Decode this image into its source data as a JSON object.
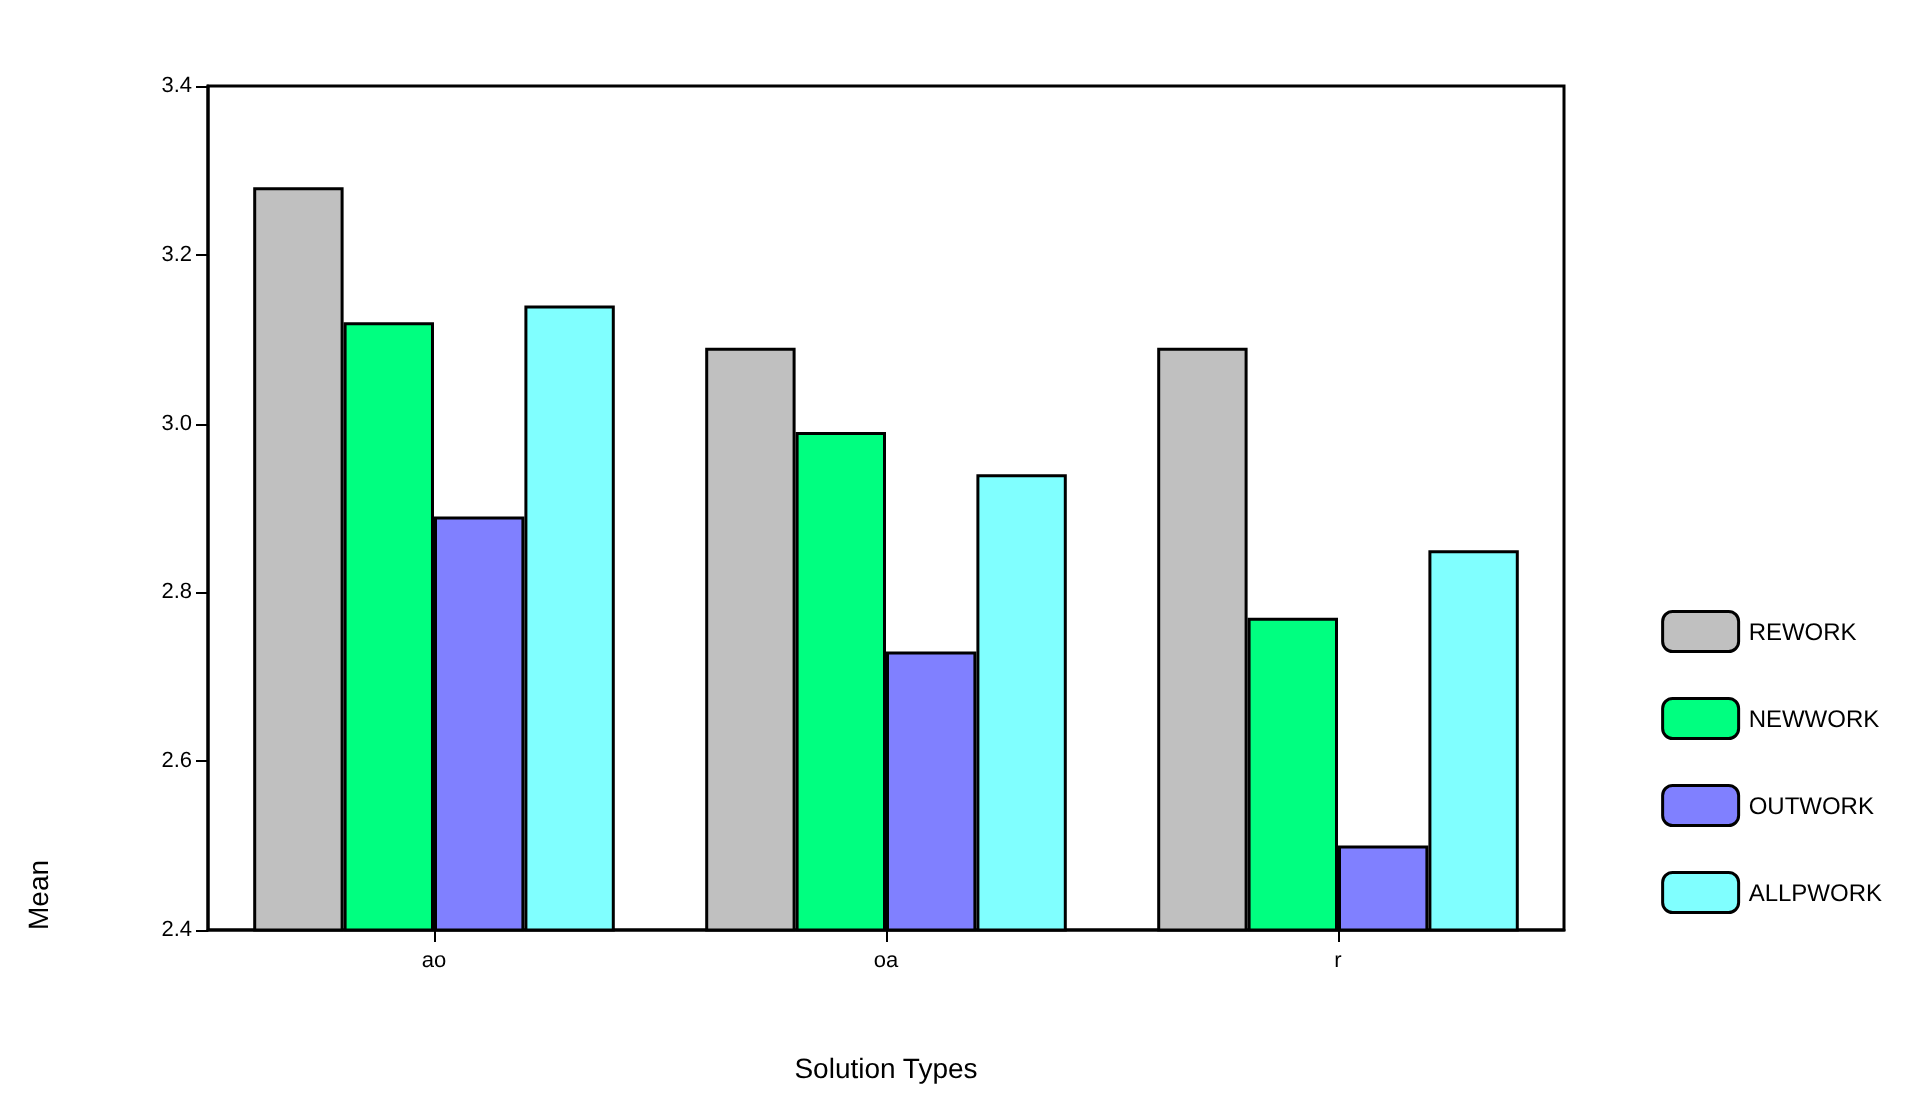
{
  "chart_data": {
    "type": "bar",
    "xlabel": "Solution Types",
    "ylabel": "Mean",
    "categories": [
      "ao",
      "oa",
      "r"
    ],
    "series": [
      {
        "name": "REWORK",
        "color": "#c0c0c0",
        "values": [
          3.28,
          3.09,
          3.09
        ]
      },
      {
        "name": "NEWWORK",
        "color": "#00ff80",
        "values": [
          3.12,
          2.99,
          2.77
        ]
      },
      {
        "name": "OUTWORK",
        "color": "#8080ff",
        "values": [
          2.89,
          2.73,
          2.5
        ]
      },
      {
        "name": "ALLPWORK",
        "color": "#80ffff",
        "values": [
          3.14,
          2.94,
          2.85
        ]
      }
    ],
    "ylim": [
      2.4,
      3.4
    ],
    "yticks": [
      2.4,
      2.6,
      2.8,
      {
        "value": 3,
        "label": "3.0"
      },
      3.2,
      3.4
    ],
    "grid": false,
    "legend": "right"
  }
}
